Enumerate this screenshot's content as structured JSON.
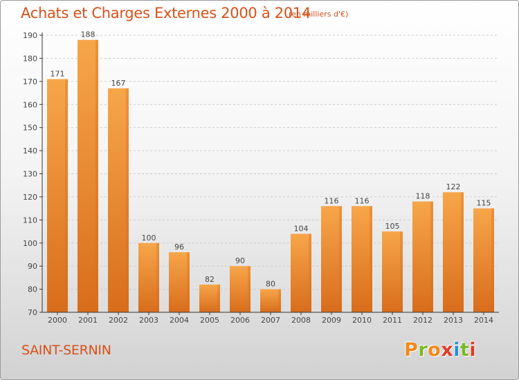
{
  "header": {
    "title": "Achats et Charges Externes 2000 à 2014",
    "subtitle": "(en milliers d'€)"
  },
  "footer": {
    "commune": "SAINT-SERNIN",
    "logo_letters": [
      "P",
      "r",
      "o",
      "x",
      "i",
      "t",
      "i"
    ],
    "logo_colors": [
      "#f08a1c",
      "#7ab828",
      "#f08a1c",
      "#e23b2a",
      "#2a8fd6",
      "#7ab828",
      "#e23b2a"
    ]
  },
  "colors": {
    "bar_light": "#f7a64a",
    "bar_dark": "#d86d1c",
    "axis": "#333333",
    "grid": "#cccccc",
    "accent": "#d8501a"
  },
  "chart_data": {
    "type": "bar",
    "title": "Achats et Charges Externes 2000 à 2014",
    "subtitle": "(en milliers d'€)",
    "xlabel": "",
    "ylabel": "",
    "categories": [
      "2000",
      "2001",
      "2002",
      "2003",
      "2004",
      "2005",
      "2006",
      "2007",
      "2008",
      "2009",
      "2010",
      "2011",
      "2012",
      "2013",
      "2014"
    ],
    "values": [
      171,
      188,
      167,
      100,
      96,
      82,
      90,
      80,
      104,
      116,
      116,
      105,
      118,
      122,
      115
    ],
    "ylim": [
      70,
      190
    ],
    "yticks": [
      70,
      80,
      90,
      100,
      110,
      120,
      130,
      140,
      150,
      160,
      170,
      180,
      190
    ],
    "grid": true,
    "legend": "none"
  }
}
